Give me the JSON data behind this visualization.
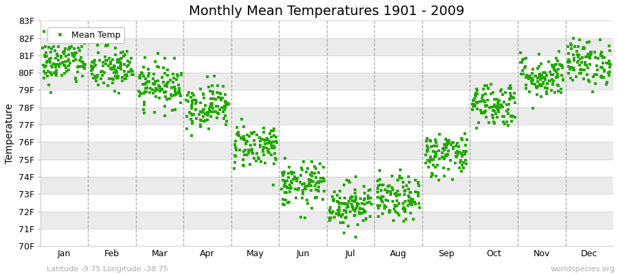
{
  "title": "Monthly Mean Temperatures 1901 - 2009",
  "ylabel": "Temperature",
  "subtitle_left": "Latitude -9.75 Longitude -38.75",
  "subtitle_right": "worldspecies.org",
  "legend_label": "Mean Temp",
  "ylim": [
    70,
    83
  ],
  "yticks": [
    70,
    71,
    72,
    73,
    74,
    75,
    76,
    77,
    78,
    79,
    80,
    81,
    82,
    83
  ],
  "ytick_labels": [
    "70F",
    "71F",
    "72F",
    "73F",
    "74F",
    "75F",
    "76F",
    "77F",
    "78F",
    "79F",
    "80F",
    "81F",
    "82F",
    "83F"
  ],
  "months": [
    "Jan",
    "Feb",
    "Mar",
    "Apr",
    "May",
    "Jun",
    "Jul",
    "Aug",
    "Sep",
    "Oct",
    "Nov",
    "Dec"
  ],
  "num_years": 109,
  "seed": 42,
  "monthly_means": [
    80.6,
    80.2,
    79.3,
    78.1,
    75.8,
    73.5,
    72.4,
    72.7,
    75.3,
    78.2,
    79.8,
    80.6
  ],
  "monthly_stds": [
    0.65,
    0.65,
    0.65,
    0.65,
    0.65,
    0.65,
    0.65,
    0.65,
    0.65,
    0.65,
    0.65,
    0.65
  ],
  "marker_color": "#22aa00",
  "marker_size": 3.5,
  "bg_color": "#ffffff",
  "band_color_light": "#ffffff",
  "band_color_dark": "#ebebeb",
  "dashed_line_color": "#999999",
  "title_fontsize": 14,
  "axis_label_fontsize": 10,
  "tick_fontsize": 9,
  "legend_fontsize": 9,
  "subtitle_fontsize": 8
}
